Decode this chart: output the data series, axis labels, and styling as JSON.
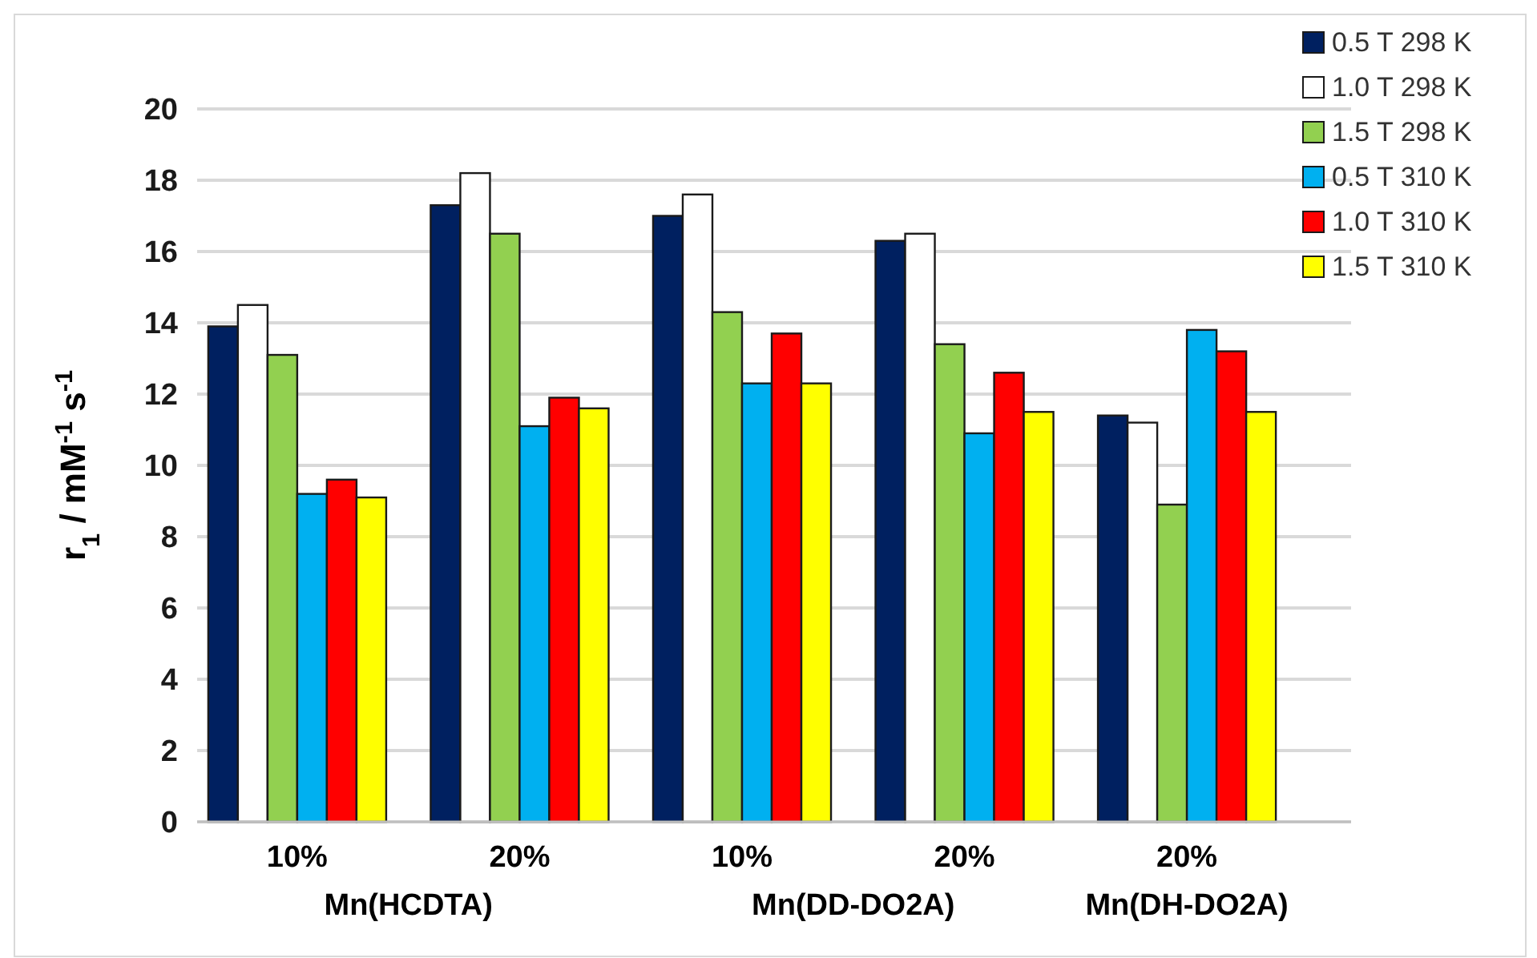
{
  "chart_data": {
    "type": "bar",
    "ylabel": "r$_{1}$ / mM$^{-1}$ s$^{-1}$",
    "categories": [
      "10%",
      "20%",
      "10%",
      "20%",
      "20%"
    ],
    "series": [
      {
        "name": "0.5 T 298 K",
        "color": "#002060",
        "values": [
          13.9,
          17.3,
          17.0,
          16.3,
          11.4
        ]
      },
      {
        "name": "1.0 T 298 K",
        "color": "#ffffff",
        "values": [
          14.5,
          18.2,
          17.6,
          16.5,
          11.2
        ]
      },
      {
        "name": "1.5 T 298 K",
        "color": "#92d050",
        "values": [
          13.1,
          16.5,
          14.3,
          13.4,
          8.9
        ]
      },
      {
        "name": "0.5 T 310 K",
        "color": "#00b0f0",
        "values": [
          9.2,
          11.1,
          12.3,
          10.9,
          13.8
        ]
      },
      {
        "name": "1.0 T 310 K",
        "color": "#ff0000",
        "values": [
          9.6,
          11.9,
          13.7,
          12.6,
          13.2
        ]
      },
      {
        "name": "1.5 T 310 K",
        "color": "#ffff00",
        "values": [
          9.1,
          11.6,
          12.3,
          11.5,
          11.5
        ]
      }
    ],
    "ylim": [
      0,
      20
    ],
    "yticks": [
      0,
      2,
      4,
      6,
      8,
      10,
      12,
      14,
      16,
      18,
      20
    ],
    "grid": "y",
    "legend": "top right",
    "annotations": [
      "Mn(HCDTA)",
      "Mn(DD-DO2A)",
      "Mn(DH-DO2A)"
    ]
  }
}
